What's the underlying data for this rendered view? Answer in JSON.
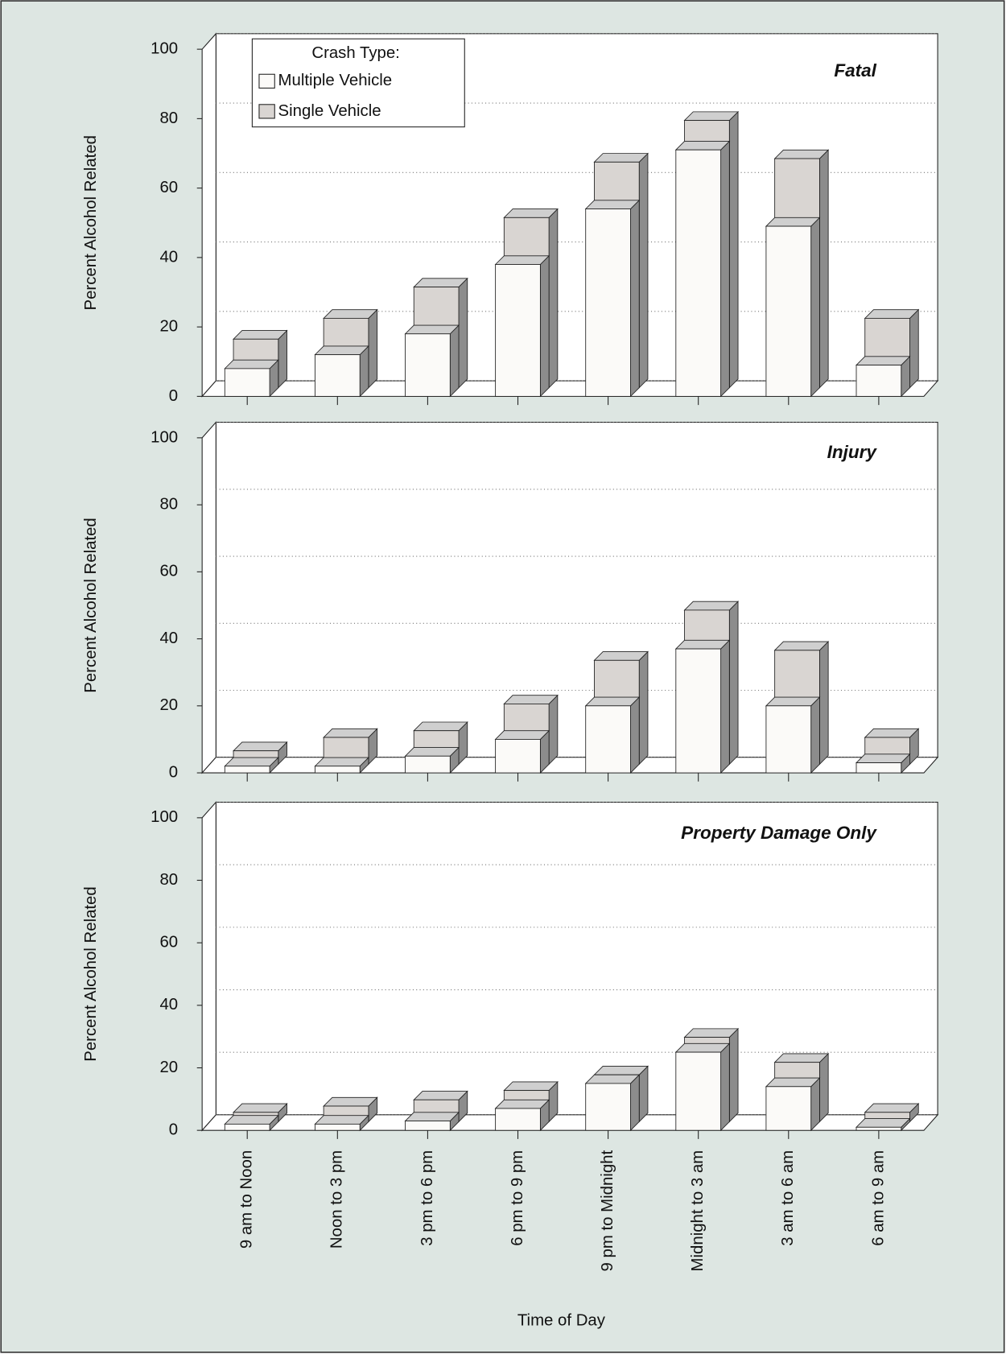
{
  "chart_data": [
    {
      "type": "bar",
      "title": "Fatal",
      "y_label": "Percent Alcohol Related",
      "legend_title": "Crash Type:",
      "series": [
        {
          "name": "Multiple Vehicle",
          "color": "#fbfaf8",
          "values": [
            8,
            12,
            18,
            38,
            54,
            71,
            49,
            9
          ]
        },
        {
          "name": "Single Vehicle",
          "color": "#d9d5d2",
          "values": [
            14,
            20,
            29,
            49,
            65,
            77,
            66,
            20
          ]
        }
      ],
      "ylim": [
        0,
        100
      ],
      "yticks": [
        0,
        20,
        40,
        60,
        80,
        100
      ],
      "grid": true
    },
    {
      "type": "bar",
      "title": "Injury",
      "y_label": "Percent Alcohol Related",
      "series": [
        {
          "color": "#fbfaf8",
          "values": [
            2,
            2,
            5,
            10,
            20,
            37,
            20,
            3
          ]
        },
        {
          "color": "#d9d5d2",
          "values": [
            4,
            8,
            10,
            18,
            31,
            46,
            34,
            8
          ]
        }
      ],
      "ylim": [
        0,
        100
      ],
      "yticks": [
        0,
        20,
        40,
        60,
        80,
        100
      ],
      "grid": true
    },
    {
      "type": "bar",
      "title": "Property Damage Only",
      "y_label": "Percent Alcohol Related",
      "x_label": "Time of Day",
      "categories": [
        "9 am to Noon",
        "Noon to 3 pm",
        "3 pm to 6 pm",
        "6 pm to 9 pm",
        "9 pm to Midnight",
        "Midnight to 3 am",
        "3 am to 6 am",
        "6 am to 9 am"
      ],
      "series": [
        {
          "color": "#fbfaf8",
          "values": [
            2,
            2,
            3,
            7,
            15,
            25,
            14,
            1
          ]
        },
        {
          "color": "#d9d5d2",
          "values": [
            3,
            5,
            7,
            10,
            15,
            27,
            19,
            3
          ]
        }
      ],
      "ylim": [
        0,
        100
      ],
      "yticks": [
        0,
        20,
        40,
        60,
        80,
        100
      ],
      "grid": true
    }
  ]
}
